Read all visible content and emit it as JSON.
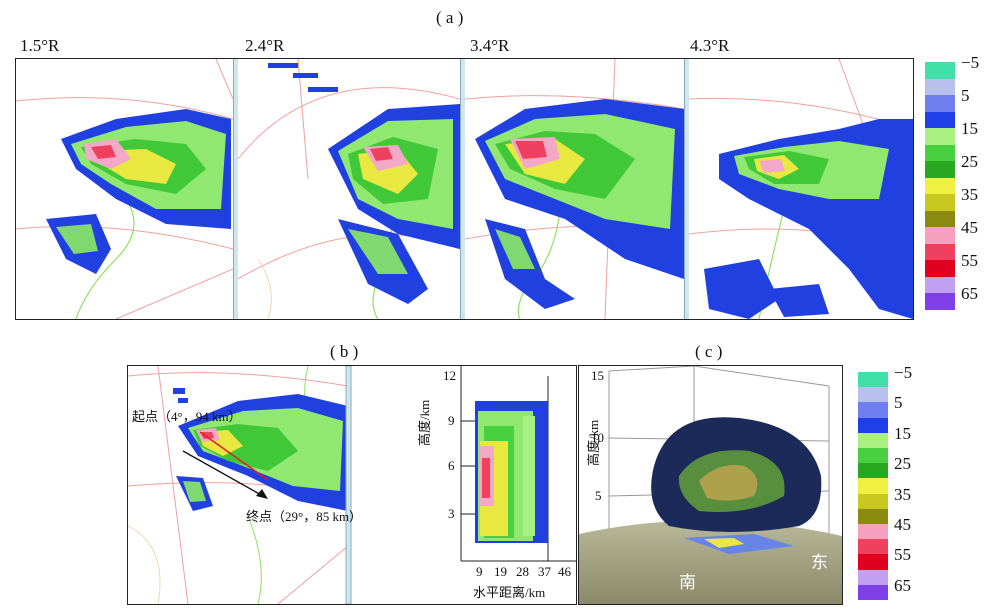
{
  "panel_a": {
    "label": "( a )",
    "elevations": [
      "1.5°R",
      "2.4°R",
      "3.4°R",
      "4.3°R"
    ]
  },
  "panel_b": {
    "label": "( b )",
    "start_point": "起点（4°，94 km）",
    "end_point": "终点（29°，85 km）",
    "section": {
      "y_axis_label": "高度/km",
      "x_axis_label": "水平距离/km",
      "y_ticks": [
        "12",
        "9",
        "6",
        "3"
      ],
      "x_ticks": [
        "9",
        "19",
        "28",
        "37",
        "46"
      ]
    }
  },
  "panel_c": {
    "label": "( c )",
    "z_axis_label": "高度/km",
    "z_ticks": [
      "15",
      "10",
      "5"
    ],
    "south_label": "南",
    "east_label": "东"
  },
  "colorbar": {
    "ticks": [
      "−5",
      "5",
      "15",
      "25",
      "35",
      "45",
      "55",
      "65"
    ],
    "colors": [
      "#40e0a8",
      "#b8c0ee",
      "#6f7ff0",
      "#1f3fe8",
      "#a8f080",
      "#48d040",
      "#28a820",
      "#f0f040",
      "#c8c820",
      "#8a8a10",
      "#f8a0c0",
      "#f04060",
      "#e00020",
      "#c0a0f0",
      "#8040e8"
    ]
  }
}
